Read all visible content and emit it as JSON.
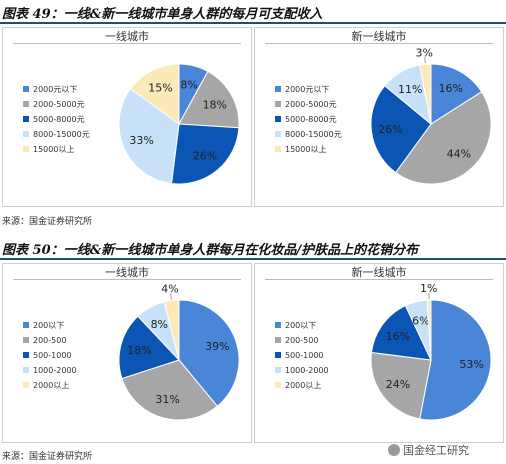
{
  "figures": [
    {
      "title": "图表 49：一线&新一线城市单身人群的每月可支配收入",
      "source": "来源：国金证券研究所"
    },
    {
      "title": "图表 50：一线&新一线城市单身人群每月在化妆品/护肤品上的花销分布",
      "source": "来源：国金证券研究所"
    }
  ],
  "watermark": "国金经工研究",
  "colors": {
    "c1": "#4a86d8",
    "c2": "#a6a6a6",
    "c3": "#0b56b5",
    "c4": "#c7e2f8",
    "c5": "#fbe9b8",
    "header_rule": "#1f4e79"
  },
  "chart_data": [
    {
      "type": "pie",
      "title": "一线城市",
      "categories": [
        "2000元以下",
        "2000-5000元",
        "5000-8000元",
        "8000-15000元",
        "15000以上"
      ],
      "values": [
        8,
        18,
        26,
        33,
        15
      ],
      "labels": [
        "8%",
        "18%",
        "26%",
        "33%",
        "15%"
      ],
      "legend_position": "left"
    },
    {
      "type": "pie",
      "title": "新一线城市",
      "categories": [
        "2000元以下",
        "2000-5000元",
        "5000-8000元",
        "8000-15000元",
        "15000以上"
      ],
      "values": [
        16,
        44,
        26,
        11,
        3
      ],
      "labels": [
        "16%",
        "44%",
        "26%",
        "11%",
        "3%"
      ],
      "legend_position": "left"
    },
    {
      "type": "pie",
      "title": "一线城市",
      "categories": [
        "200以下",
        "200-500",
        "500-1000",
        "1000-2000",
        "2000以上"
      ],
      "values": [
        39,
        31,
        18,
        8,
        4
      ],
      "labels": [
        "39%",
        "31%",
        "18%",
        "8%",
        "4%"
      ],
      "legend_position": "left"
    },
    {
      "type": "pie",
      "title": "新一线城市",
      "categories": [
        "200以下",
        "200-500",
        "500-1000",
        "1000-2000",
        "2000以上"
      ],
      "values": [
        53,
        24,
        16,
        6,
        1
      ],
      "labels": [
        "53%",
        "24%",
        "16%",
        "6%",
        "1%"
      ],
      "legend_position": "left"
    }
  ]
}
